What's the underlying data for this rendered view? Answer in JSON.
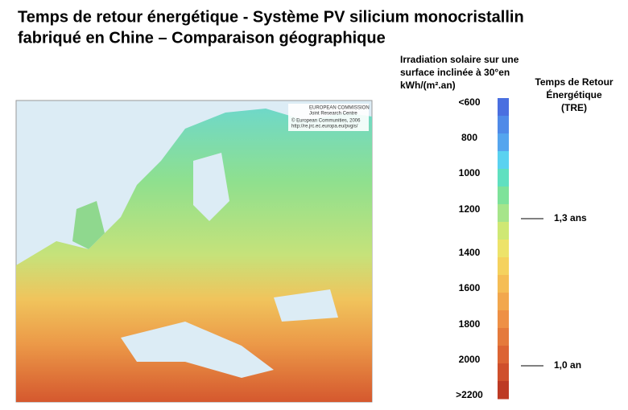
{
  "header": {
    "title_lines": [
      "Temps de retour énergétique - Système PV silicium monocristallin",
      "fabriqué en Chine – Comparaison géographique"
    ]
  },
  "map": {
    "credits": [
      "EUROPEAN COMMISSION",
      "Joint Research Centre",
      "© European Communities, 2006",
      "http://re.jrc.ec.europa.eu/pvgis/"
    ]
  },
  "legend": {
    "title_lines": [
      "Irradiation solaire sur une",
      "surface inclinée à 30°en",
      "kWh/(m².an)"
    ],
    "labels": [
      "<600",
      "800",
      "1000",
      "1200",
      "1400",
      "1600",
      "1800",
      "2000",
      ">2200"
    ],
    "colors": [
      "#4a6fe0",
      "#4f8ae8",
      "#55a5ee",
      "#5ad2f0",
      "#5fe0c0",
      "#7ee29a",
      "#a6e58a",
      "#cfe874",
      "#ede36a",
      "#f5d25e",
      "#f5bd55",
      "#f2a74d",
      "#ee9045",
      "#e57a3c",
      "#dc6434",
      "#cf4f2c",
      "#bd3a24"
    ]
  },
  "tre": {
    "title_lines": [
      "Temps de Retour",
      "Énergétique",
      "(TRE)"
    ],
    "markers": [
      "1,3 ans",
      "1,0 an"
    ]
  }
}
